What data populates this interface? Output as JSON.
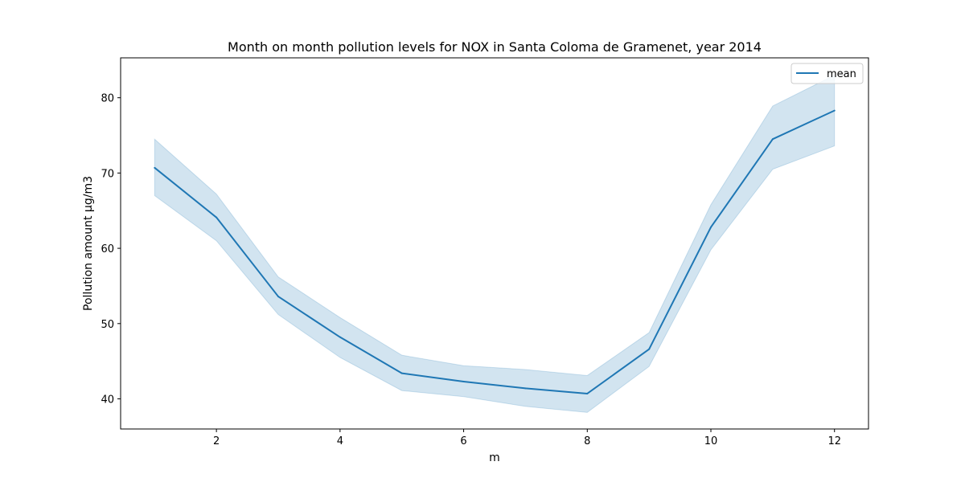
{
  "chart_data": {
    "type": "line",
    "title": "Month on month pollution levels for NOX in Santa Coloma de Gramenet, year 2014",
    "xlabel": "m",
    "ylabel": "Pollution amount µg/m3",
    "xlim": [
      0.45,
      12.55
    ],
    "ylim": [
      36.0,
      85.3
    ],
    "x_ticks": [
      2,
      4,
      6,
      8,
      10,
      12
    ],
    "y_ticks": [
      40,
      50,
      60,
      70,
      80
    ],
    "grid": false,
    "legend_position": "top-right",
    "x": [
      1,
      2,
      3,
      4,
      5,
      6,
      7,
      8,
      9,
      10,
      11,
      12
    ],
    "series": [
      {
        "name": "mean",
        "color": "#1f77b4",
        "values": [
          70.7,
          64.1,
          53.6,
          48.2,
          43.4,
          42.3,
          41.4,
          40.7,
          46.6,
          62.8,
          74.5,
          78.3
        ],
        "band_lower": [
          67.0,
          61.0,
          51.2,
          45.5,
          41.1,
          40.3,
          39.0,
          38.2,
          44.3,
          59.8,
          70.5,
          73.6
        ],
        "band_upper": [
          74.5,
          67.2,
          56.2,
          50.8,
          45.8,
          44.4,
          43.9,
          43.1,
          48.8,
          65.8,
          78.9,
          83.0
        ],
        "band_color": "#1f77b4"
      }
    ]
  }
}
